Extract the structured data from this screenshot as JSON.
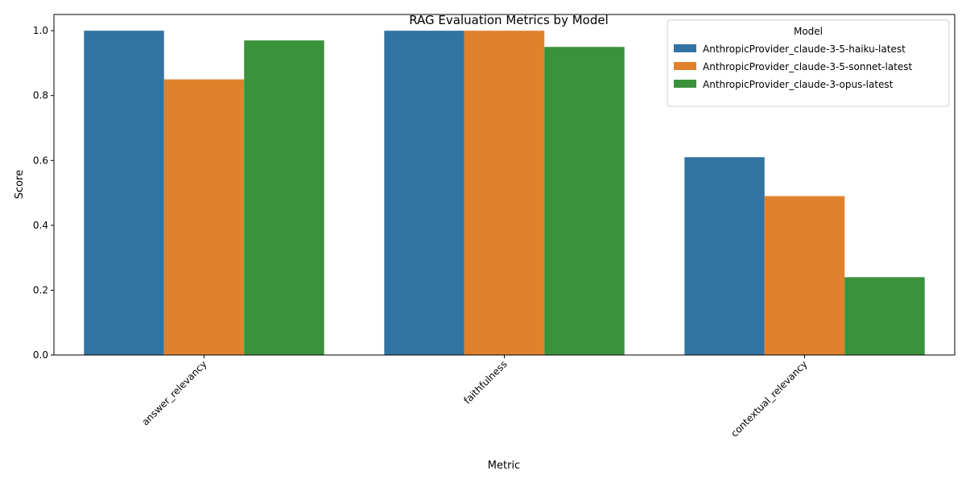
{
  "chart_data": {
    "type": "bar",
    "title": "RAG Evaluation Metrics by Model",
    "xlabel": "Metric",
    "ylabel": "Score",
    "categories": [
      "answer_relevancy",
      "faithfulness",
      "contextual_relevancy"
    ],
    "ylim": [
      0,
      1.05
    ],
    "yticks": [
      "0.0",
      "0.2",
      "0.4",
      "0.6",
      "0.8",
      "1.0"
    ],
    "grid": false,
    "legend": {
      "title": "Model",
      "placement": "top-right"
    },
    "series": [
      {
        "name": "AnthropicProvider_claude-3-5-haiku-latest",
        "color": "#3274a1",
        "values": [
          1.0,
          1.0,
          0.61
        ]
      },
      {
        "name": "AnthropicProvider_claude-3-5-sonnet-latest",
        "color": "#e1812c",
        "values": [
          0.85,
          1.0,
          0.49
        ]
      },
      {
        "name": "AnthropicProvider_claude-3-opus-latest",
        "color": "#3a923a",
        "values": [
          0.97,
          0.95,
          0.24
        ]
      }
    ]
  }
}
